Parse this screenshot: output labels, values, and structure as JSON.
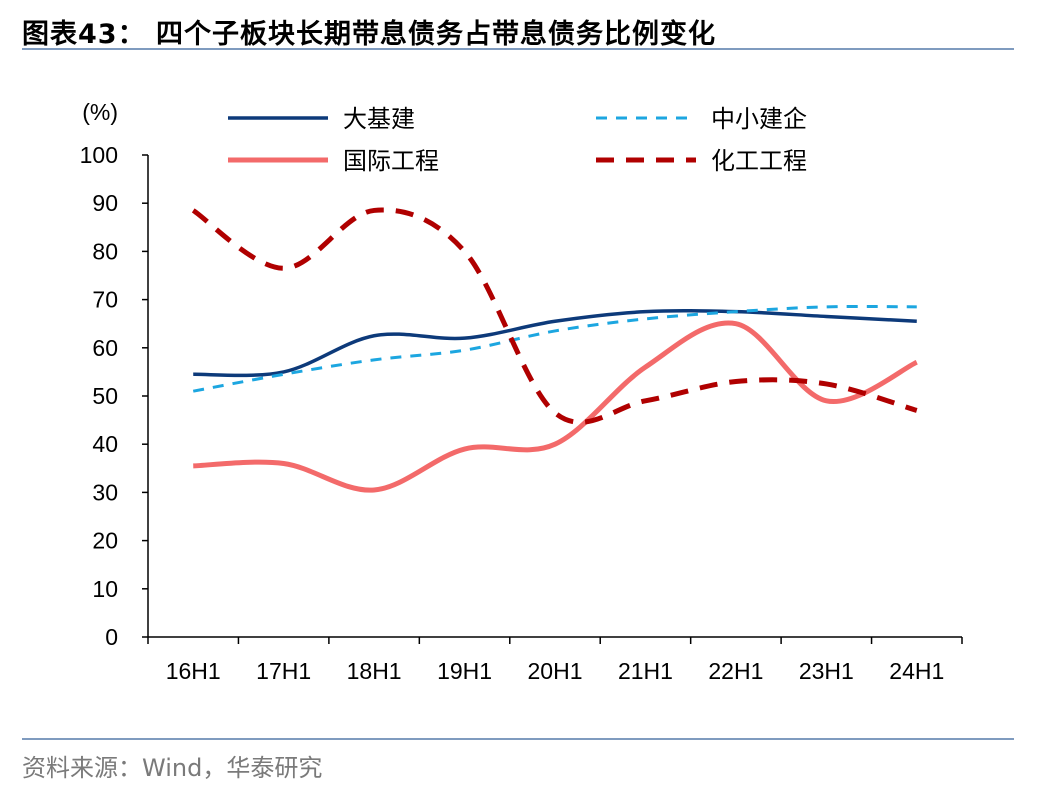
{
  "title": "图表43：  四个子板块长期带息债务占带息债务比例变化",
  "source": "资料来源：Wind，华泰研究",
  "chart_data": {
    "type": "line",
    "ylabel": "(%)",
    "ylim": [
      0,
      100
    ],
    "yticks": [
      0,
      10,
      20,
      30,
      40,
      50,
      60,
      70,
      80,
      90,
      100
    ],
    "categories": [
      "16H1",
      "17H1",
      "18H1",
      "19H1",
      "20H1",
      "21H1",
      "22H1",
      "23H1",
      "24H1"
    ],
    "legend_position": "top",
    "series": [
      {
        "name": "大基建",
        "color": "#0d3a7a",
        "dash": "solid",
        "values": [
          54.5,
          55,
          62.5,
          62,
          65.5,
          67.5,
          67.5,
          66.5,
          65.5
        ]
      },
      {
        "name": "中小建企",
        "color": "#1ca6e0",
        "dash": "dashed",
        "values": [
          51,
          54.5,
          57.5,
          59.5,
          63.5,
          66,
          67.5,
          68.5,
          68.5
        ]
      },
      {
        "name": "国际工程",
        "color": "#f36a6a",
        "dash": "solid",
        "values": [
          35.5,
          36,
          30.5,
          39,
          40,
          56,
          65,
          49,
          57
        ]
      },
      {
        "name": "化工工程",
        "color": "#b00000",
        "dash": "dashed",
        "values": [
          88.5,
          76.5,
          88.5,
          80,
          46.5,
          49,
          53,
          52.5,
          47
        ]
      }
    ]
  }
}
